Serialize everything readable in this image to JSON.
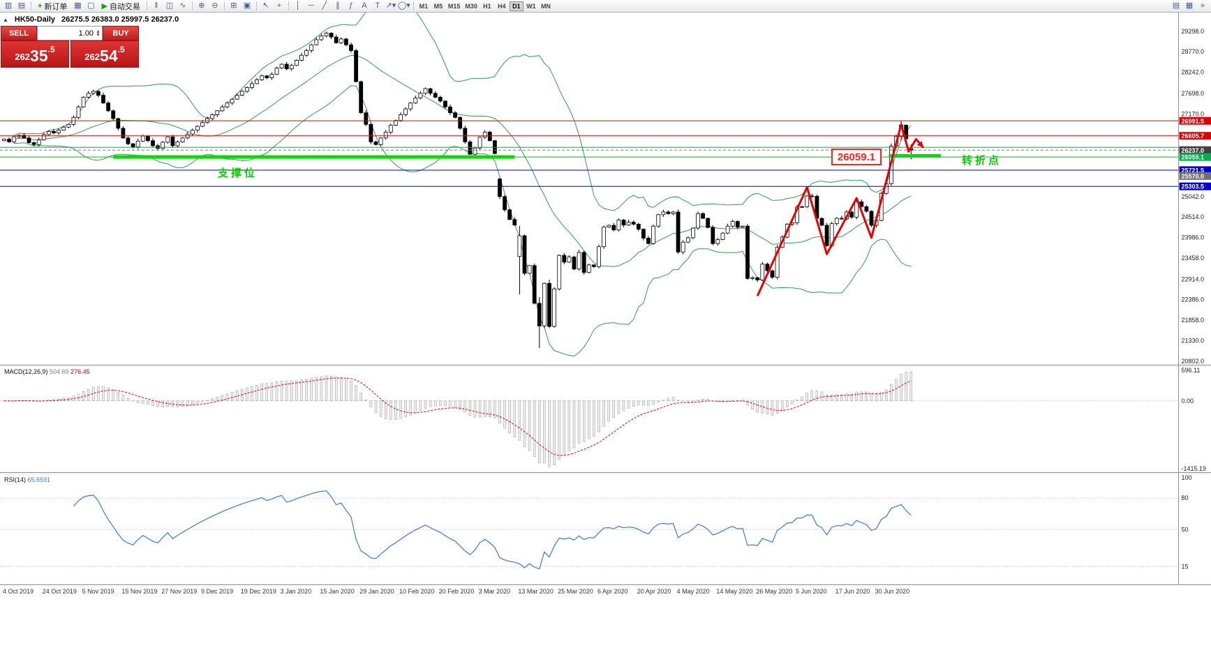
{
  "toolbar": {
    "new_order_label": "新订单",
    "autotrade_label": "自动交易",
    "timeframes": [
      "M1",
      "M5",
      "M15",
      "M30",
      "H1",
      "H4",
      "D1",
      "W1",
      "MN"
    ],
    "active_timeframe": "D1",
    "overflow_label": "»",
    "items": [
      {
        "name": "new-chart-icon",
        "g": "▥"
      },
      {
        "name": "chart-profiles-icon",
        "g": "▤"
      },
      {
        "name": "sep"
      },
      {
        "name": "new-order-button",
        "btn": true,
        "g": "+",
        "icon_name": "new-order-icon",
        "label_key": "new_order_label"
      },
      {
        "name": "market-watch-icon",
        "g": "▦"
      },
      {
        "name": "navigator-icon",
        "g": "▢"
      },
      {
        "name": "autotrade-button",
        "btn": true,
        "g": "▶",
        "icon_name": "autotrade-play-icon",
        "label_key": "autotrade_label"
      },
      {
        "name": "sep"
      },
      {
        "name": "bar-chart-icon",
        "g": "‖"
      },
      {
        "name": "candlestick-chart-icon",
        "g": "◫"
      },
      {
        "name": "line-chart-icon",
        "g": "∿"
      },
      {
        "name": "sep"
      },
      {
        "name": "zoom-in-icon",
        "g": "⊕"
      },
      {
        "name": "zoom-out-icon",
        "g": "⊖"
      },
      {
        "name": "sep"
      },
      {
        "name": "tile-windows-icon",
        "g": "⊞"
      },
      {
        "name": "auto-arrange-icon",
        "g": "▣"
      },
      {
        "name": "sep"
      },
      {
        "name": "cursor-icon",
        "g": "↖"
      },
      {
        "name": "crosshair-icon",
        "g": "+"
      },
      {
        "name": "sep"
      },
      {
        "name": "vertical-line-icon",
        "g": "│"
      },
      {
        "name": "horizontal-line-icon",
        "g": "─"
      },
      {
        "name": "trendline-icon",
        "g": "╱"
      },
      {
        "name": "channel-icon",
        "g": "∥"
      },
      {
        "name": "fibonacci-icon",
        "g": "ƒ"
      },
      {
        "name": "text-icon",
        "g": "A"
      },
      {
        "name": "text-label-icon",
        "g": "T"
      },
      {
        "name": "arrows-dropdown-icon",
        "g": "↗▾"
      },
      {
        "name": "shapes-dropdown-icon",
        "g": "◯▾"
      },
      {
        "name": "sep"
      }
    ],
    "right_icons": [
      {
        "name": "print-icon",
        "g": "▤"
      },
      {
        "name": "chart-grid-icon",
        "g": "▦"
      }
    ]
  },
  "chart_header": {
    "title": "HK50-Daily",
    "ohlc_text": "26275.5 26383.0 25997.5 26237.0"
  },
  "trade_panel": {
    "sell_label": "SELL",
    "buy_label": "BUY",
    "lot_value": "1.00",
    "sell_price": "26235.5",
    "buy_price": "26254.5"
  },
  "annotations": {
    "support_label": "支撑位",
    "pivot_label": "转折点",
    "level_box": "26059.1"
  },
  "indicators": {
    "macd": {
      "label": "MACD(12,26,9)",
      "value_main": "504.69",
      "value_signal": "276.45",
      "scale_top": "596.11",
      "scale_zero": "0.00",
      "scale_bottom": "-1415.19"
    },
    "rsi": {
      "label": "RSI(14)",
      "value": "65.6591",
      "scale": [
        "100",
        "80",
        "50",
        "15"
      ],
      "levels": [
        80,
        50,
        15
      ]
    }
  },
  "chart_data": {
    "type": "candlestick",
    "title": "HK50-Daily",
    "ylim": [
      20710,
      29780
    ],
    "y_ticks": [
      "29298.0",
      "28770.0",
      "28242.0",
      "27698.0",
      "27170.0",
      "25042.0",
      "24514.0",
      "23986.0",
      "23458.0",
      "22914.0",
      "22386.0",
      "21858.0",
      "21330.0",
      "20802.0"
    ],
    "x_labels": [
      [
        "4 Oct 2019",
        0
      ],
      [
        "24 Oct 2019",
        8
      ],
      [
        "5 Nov 2019",
        16
      ],
      [
        "15 Nov 2019",
        24
      ],
      [
        "27 Nov 2019",
        32
      ],
      [
        "9 Dec 2019",
        40
      ],
      [
        "19 Dec 2019",
        48
      ],
      [
        "3 Jan 2020",
        56
      ],
      [
        "15 Jan 2020",
        64
      ],
      [
        "29 Jan 2020",
        72
      ],
      [
        "10 Feb 2020",
        80
      ],
      [
        "20 Feb 2020",
        88
      ],
      [
        "3 Mar 2020",
        96
      ],
      [
        "13 Mar 2020",
        104
      ],
      [
        "25 Mar 2020",
        112
      ],
      [
        "6 Apr 2020",
        120
      ],
      [
        "20 Apr 2020",
        128
      ],
      [
        "4 May 2020",
        136
      ],
      [
        "14 May 2020",
        144
      ],
      [
        "26 May 2020",
        152
      ],
      [
        "5 Jun 2020",
        160
      ],
      [
        "17 Jun 2020",
        168
      ],
      [
        "30 Jun 2020",
        176
      ]
    ],
    "closes": [
      26520,
      26450,
      26580,
      26620,
      26550,
      26430,
      26380,
      26500,
      26640,
      26720,
      26680,
      26750,
      26830,
      26900,
      27080,
      27350,
      27600,
      27700,
      27750,
      27650,
      27450,
      27250,
      27050,
      26800,
      26550,
      26400,
      26320,
      26470,
      26600,
      26480,
      26350,
      26280,
      26440,
      26580,
      26350,
      26450,
      26550,
      26650,
      26750,
      26850,
      26950,
      27050,
      27150,
      27250,
      27350,
      27450,
      27550,
      27650,
      27750,
      27850,
      27950,
      28050,
      28150,
      28100,
      28190,
      28350,
      28450,
      28330,
      28420,
      28550,
      28680,
      28800,
      28950,
      29080,
      29180,
      29250,
      29150,
      29000,
      29100,
      28950,
      28800,
      28000,
      27200,
      26900,
      26450,
      26380,
      26550,
      26700,
      26880,
      27000,
      27150,
      27300,
      27450,
      27580,
      27700,
      27820,
      27700,
      27600,
      27500,
      27350,
      27200,
      27080,
      26800,
      26450,
      26130,
      26292,
      26570,
      26700,
      26480,
      26150,
      25040,
      24700,
      24450,
      24309,
      24032,
      23064,
      23264,
      22292,
      21709,
      22805,
      21696,
      22663,
      23527,
      23352,
      23484,
      23175,
      23603,
      23085,
      23280,
      23236,
      23750,
      24253,
      24300,
      24180,
      24435,
      24306,
      24380,
      24330,
      24200,
      23970,
      23831,
      24280,
      24575,
      24644,
      24600,
      24643,
      23613,
      23868,
      23980,
      24230,
      24602,
      24480,
      24245,
      23830,
      23934,
      24100,
      24280,
      24400,
      24250,
      24280,
      22930,
      22952,
      22893,
      23301,
      23132,
      22961,
      23732,
      23996,
      24326,
      24366,
      24770,
      24777,
      25057,
      25049,
      24480,
      24301,
      23776,
      24344,
      24481,
      24465,
      24643,
      24511,
      24907,
      24781,
      24663,
      24301,
      24427,
      25124,
      25373,
      26339,
      26590,
      26880,
      26530,
      26237
    ],
    "special_candles": {
      "100": [
        25493,
        25520,
        24976,
        25040
      ],
      "104": [
        23500,
        24280,
        22519,
        24032
      ],
      "108": [
        22292,
        22450,
        21139,
        21709
      ],
      "110": [
        22805,
        22900,
        21650,
        21696
      ],
      "181": [
        26590,
        26988,
        26480,
        26880
      ],
      "183": [
        26275.5,
        26383.0,
        25997.5,
        26237.0
      ]
    },
    "bollinger": {
      "period": 20,
      "deviation": 2,
      "color": "#2f9e4f"
    },
    "hlines": [
      {
        "price": 26991.5,
        "color": "#e00000",
        "dash": ""
      },
      {
        "price": 26605.7,
        "color": "#e00000",
        "dash": ""
      },
      {
        "price": 26310,
        "color": "#00b050",
        "dash": ""
      },
      {
        "price": 26237,
        "color": "#3aa85a",
        "dash": "4,3"
      },
      {
        "price": 26059.1,
        "color": "#00c000",
        "dash": ""
      },
      {
        "price": 25721.5,
        "color": "#0000cd",
        "dash": ""
      },
      {
        "price": 25303.5,
        "color": "#0000cd",
        "dash": ""
      }
    ],
    "thick_segments": [
      {
        "price": 26059.1,
        "from": 22,
        "to": 103,
        "color": "#00dd00",
        "width": 5
      },
      {
        "price": 26090,
        "from": 178.5,
        "to": 189,
        "color": "#00dd00",
        "width": 5
      }
    ],
    "price_tags": [
      {
        "label": "26991.5",
        "price": 26991.5,
        "bg": "#e00000"
      },
      {
        "label": "26605.7",
        "price": 26605.7,
        "bg": "#e00000"
      },
      {
        "label": "26237.0",
        "price": 26237.0,
        "bg": "#404040"
      },
      {
        "label": "26059.1",
        "price": 26059.1,
        "bg": "#00b050"
      },
      {
        "label": "25721.5",
        "price": 25721.5,
        "bg": "#0000cd"
      },
      {
        "label": "25570.0",
        "price": 25570.0,
        "bg": "#707070"
      },
      {
        "label": "25303.5",
        "price": 25303.5,
        "bg": "#0000cd"
      }
    ],
    "zigzag": {
      "color": "#e80000",
      "points": [
        [
          152,
          22480
        ],
        [
          162,
          25280
        ],
        [
          166,
          23560
        ],
        [
          172,
          25000
        ],
        [
          175,
          23980
        ],
        [
          181,
          26900
        ],
        [
          182.5,
          26200
        ],
        [
          184,
          26520
        ],
        [
          185.5,
          26300
        ]
      ]
    },
    "macd_params": [
      12,
      26,
      9
    ],
    "rsi_period": 14
  }
}
